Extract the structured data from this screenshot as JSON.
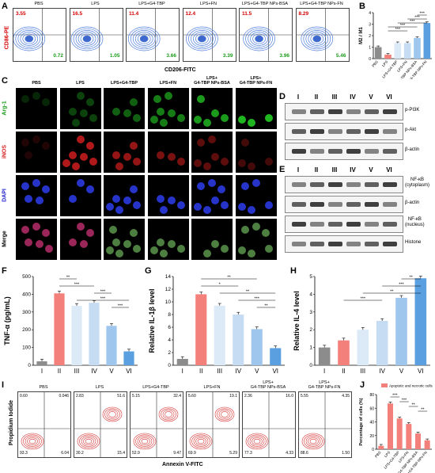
{
  "panels": {
    "A": "A",
    "B": "B",
    "C": "C",
    "D": "D",
    "E": "E",
    "F": "F",
    "G": "G",
    "H": "H",
    "I": "I",
    "J": "J"
  },
  "groups": [
    "PBS",
    "LPS",
    "LPS+G4-TBP",
    "LPS+FN",
    "LPS+G4-TBP NPs-BSA",
    "LPS+G4-TBP NPs-FN"
  ],
  "flowA": {
    "ylabel": "CD86-PE",
    "xlabel": "CD206-FITC",
    "plots": [
      {
        "title": "PBS",
        "ul": "3.55",
        "lr": "0.72"
      },
      {
        "title": "LPS",
        "ul": "16.5",
        "lr": "1.05"
      },
      {
        "title": "LPS+G4-TBP",
        "ul": "11.4",
        "lr": "3.66"
      },
      {
        "title": "LPS+FN",
        "ul": "12.4",
        "lr": "3.39"
      },
      {
        "title": "LPS+G4-TBP NPs-BSA",
        "ul": "11.5",
        "lr": "3.96"
      },
      {
        "title": "LPS+G4-TBP NPs-FN",
        "ul": "8.29",
        "lr": "5.46"
      }
    ]
  },
  "chart_data": [
    {
      "panel": "B",
      "type": "bar",
      "ylabel": "M2 / M1",
      "ylim": [
        0,
        4
      ],
      "yticks": [
        0,
        1,
        2,
        3,
        4
      ],
      "categories": [
        "PBS",
        "LPS",
        "LPS+G4-TBP",
        "LPS+FN",
        "LPS+G4-TBP NPs-BSA",
        "LPS+G4-TBP NPs-FN"
      ],
      "values": [
        1.0,
        0.35,
        1.35,
        1.35,
        1.8,
        3.1
      ],
      "colors": [
        "#8c8c8c",
        "#f08080",
        "#cfe3f5",
        "#b6d4f0",
        "#8dbbe8",
        "#5aa0e0"
      ],
      "sig": [
        "***",
        "***",
        "***",
        "***",
        "***"
      ]
    },
    {
      "panel": "F",
      "type": "bar",
      "ylabel": "TNF-α (pg/mL)",
      "ylim": [
        0,
        500
      ],
      "yticks": [
        0,
        100,
        200,
        300,
        400,
        500
      ],
      "categories": [
        "I",
        "II",
        "III",
        "IV",
        "V",
        "VI"
      ],
      "values": [
        22,
        405,
        335,
        352,
        222,
        78
      ],
      "sig": [
        "**",
        "***",
        "***",
        "***",
        "***"
      ]
    },
    {
      "panel": "G",
      "type": "bar",
      "ylabel": "Relative IL-1β level",
      "ylim": [
        0,
        14
      ],
      "yticks": [
        0,
        2,
        4,
        6,
        8,
        10,
        12,
        14
      ],
      "categories": [
        "I",
        "II",
        "III",
        "IV",
        "V",
        "VI"
      ],
      "values": [
        1.0,
        11.2,
        9.4,
        8.0,
        5.7,
        2.7
      ],
      "sig": [
        "**",
        "*",
        "**",
        "***",
        "**"
      ]
    },
    {
      "panel": "H",
      "type": "bar",
      "ylabel": "Relative IL-4 level",
      "ylim": [
        0,
        5
      ],
      "yticks": [
        0,
        1,
        2,
        3,
        4,
        5
      ],
      "categories": [
        "I",
        "II",
        "III",
        "IV",
        "V",
        "VI"
      ],
      "values": [
        1.0,
        1.4,
        2.0,
        2.5,
        3.8,
        4.9
      ],
      "sig": [
        "**",
        "***",
        "**",
        "***"
      ]
    },
    {
      "panel": "J",
      "type": "bar",
      "ylabel": "Percentage of cells (%)",
      "ylim": [
        0,
        80
      ],
      "yticks": [
        0,
        20,
        40,
        60,
        80
      ],
      "legend": "Apoptotic and necrotic cells",
      "categories": [
        "PBS",
        "LPS",
        "LPS+G4-TBP",
        "LPS+FN",
        "LPS+G4-TBP NPs-BSA",
        "LPS+G4-TBP NPs-FN"
      ],
      "values": [
        5,
        67,
        45,
        37,
        23,
        13
      ],
      "sig": [
        "***",
        "***",
        "**",
        "**"
      ]
    }
  ],
  "fluor": {
    "cols": [
      "PBS",
      "LPS",
      "LPS+G4-TBP",
      "LPS+FN",
      "LPS+\nG4-TBP NPs-BSA",
      "LPS+\nG4-TBP NPs-FN"
    ],
    "rows": [
      {
        "label": "Arg-1",
        "color": "#1a9b1a"
      },
      {
        "label": "iNOS",
        "color": "#d42020"
      },
      {
        "label": "DAPI",
        "color": "#2020d0"
      },
      {
        "label": "Merge",
        "color": "#000"
      }
    ]
  },
  "westernD": {
    "lanes": [
      "I",
      "II",
      "III",
      "IV",
      "V",
      "VI"
    ],
    "bands": [
      "p-PI3K",
      "p-Akt",
      "β-actin"
    ]
  },
  "westernE": {
    "lanes": [
      "I",
      "II",
      "III",
      "IV",
      "V",
      "VI"
    ],
    "bands": [
      "NF-κB\n(cytoplasm)",
      "β-actin",
      "NF-κB\n(nucleus)",
      "Histone"
    ]
  },
  "flowI": {
    "ylabel": "Propidium Iodide",
    "xlabel": "Annexin V-FITC",
    "plots": [
      {
        "title": "PBS",
        "q": [
          "0.60",
          "0.046",
          "93.3",
          "6.04"
        ]
      },
      {
        "title": "LPS",
        "q": [
          "2.83",
          "51.6",
          "30.2",
          "15.4"
        ]
      },
      {
        "title": "LPS+G4-TBP",
        "q": [
          "5.15",
          "32.4",
          "52.9",
          "9.47"
        ]
      },
      {
        "title": "LPS+FN",
        "q": [
          "5.60",
          "19.1",
          "69.9",
          "5.29"
        ]
      },
      {
        "title": "LPS+\nG4-TBP NPs-BSA",
        "q": [
          "2.36",
          "16.0",
          "77.3",
          "4.33"
        ]
      },
      {
        "title": "LPS+\nG4-TBP NPs-FN",
        "q": [
          "5.55",
          "4.35",
          "88.6",
          "1.50"
        ]
      }
    ]
  },
  "palette": {
    "gray": "#8c8c8c",
    "red": "#f3807a",
    "light1": "#dce9f6",
    "light2": "#c5dcf2",
    "mid": "#9fc6ec",
    "blue": "#5a9fe0"
  }
}
